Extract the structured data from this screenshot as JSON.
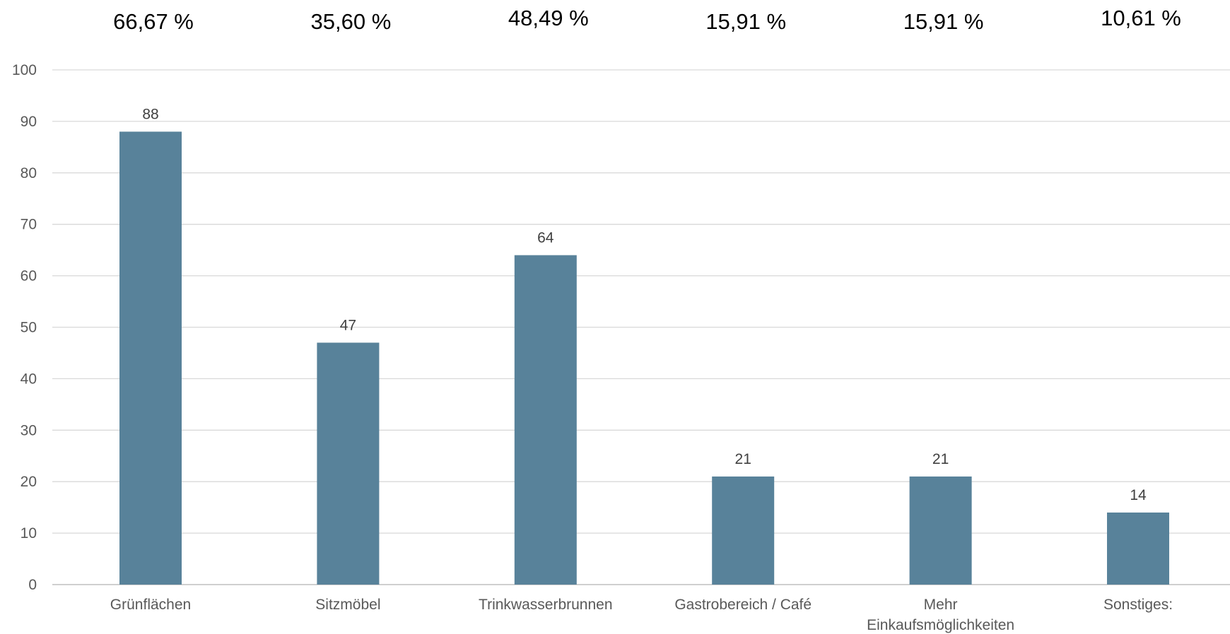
{
  "chart_data": {
    "type": "bar",
    "categories": [
      [
        "Grünflächen"
      ],
      [
        "Sitzmöbel"
      ],
      [
        "Trinkwasserbrunnen"
      ],
      [
        "Gastrobereich / Café"
      ],
      [
        "Mehr",
        "Einkaufsmöglichkeiten"
      ],
      [
        "Sonstiges:"
      ]
    ],
    "values": [
      88,
      47,
      64,
      21,
      21,
      14
    ],
    "percentages": [
      "66,67 %",
      "35,60 %",
      "48,49 %",
      "15,91 %",
      "15,91 %",
      "10,61 %"
    ],
    "ylim": [
      0,
      100
    ],
    "yticks": [
      0,
      10,
      20,
      30,
      40,
      50,
      60,
      70,
      80,
      90,
      100
    ],
    "grid": true,
    "bar_color": "#58829A",
    "grid_color": "#D9D9D9",
    "title": "",
    "xlabel": "",
    "ylabel": ""
  }
}
